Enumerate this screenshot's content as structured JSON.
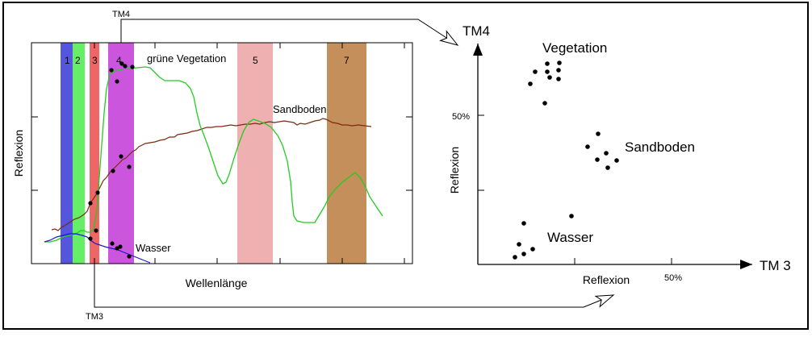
{
  "left_plot": {
    "ylabel": "Reflexion",
    "xlabel": "Wellenlänge",
    "band_labels": [
      "1",
      "2",
      "3",
      "4",
      "5",
      "7"
    ],
    "curve_labels": {
      "vegetation": "grüne Vegetation",
      "sand": "Sandboden",
      "water": "Wasser"
    },
    "colors": {
      "band1": "#5555dd",
      "band2": "#66ee66",
      "band3": "#ee6666",
      "band4": "#cc55dd",
      "band5": "#eeb0b0",
      "band7": "#c48f5a",
      "vegetation": "#22cc22",
      "sand": "#7a2a10",
      "water": "#1a1acc"
    }
  },
  "connectors": {
    "top_label": "TM4",
    "bottom_label": "TM3"
  },
  "right_plot": {
    "y_axis_title": "TM4",
    "x_axis_title": "TM 3",
    "ylabel": "Reflexion",
    "xlabel": "Reflexion",
    "y_tick": "50%",
    "x_tick": "50%",
    "clusters": {
      "vegetation": "Vegetation",
      "sand": "Sandboden",
      "water": "Wasser"
    }
  }
}
